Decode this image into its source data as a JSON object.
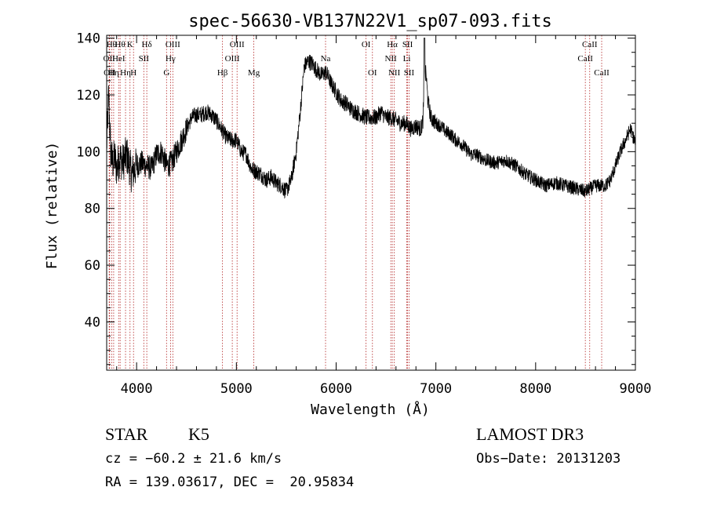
{
  "chart_data": {
    "type": "line",
    "title": "spec-56630-VB137N22V1_sp07-093.fits",
    "xlabel": "Wavelength (Å)",
    "ylabel": "Flux (relative)",
    "xlim": [
      3700,
      9000
    ],
    "ylim": [
      23,
      141
    ],
    "xticks": [
      4000,
      5000,
      6000,
      7000,
      8000,
      9000
    ],
    "yticks": [
      40,
      60,
      80,
      100,
      120,
      140
    ],
    "spectrum_anchors": {
      "x": [
        3700,
        3720,
        3740,
        3760,
        3780,
        3800,
        3830,
        3860,
        3900,
        3950,
        4000,
        4050,
        4100,
        4150,
        4200,
        4250,
        4300,
        4350,
        4400,
        4450,
        4500,
        4550,
        4600,
        4650,
        4700,
        4750,
        4800,
        4850,
        4900,
        4950,
        5000,
        5050,
        5100,
        5150,
        5200,
        5250,
        5300,
        5350,
        5400,
        5450,
        5500,
        5550,
        5600,
        5640,
        5680,
        5720,
        5760,
        5800,
        5850,
        5900,
        5950,
        6000,
        6050,
        6100,
        6150,
        6200,
        6250,
        6300,
        6350,
        6400,
        6450,
        6500,
        6550,
        6600,
        6650,
        6700,
        6750,
        6800,
        6850,
        6870,
        6885,
        6900,
        6920,
        6950,
        7000,
        7050,
        7100,
        7150,
        7200,
        7250,
        7300,
        7350,
        7400,
        7500,
        7600,
        7700,
        7800,
        7900,
        8000,
        8100,
        8200,
        8300,
        8400,
        8500,
        8600,
        8700,
        8750,
        8800,
        8850,
        8900,
        8950,
        9000
      ],
      "y": [
        102,
        120,
        100,
        96,
        98,
        94,
        98,
        96,
        99,
        92,
        95,
        96,
        95,
        94,
        99,
        100,
        95,
        96,
        100,
        104,
        108,
        112,
        113,
        113,
        114,
        113,
        111,
        108,
        105,
        104,
        104,
        100,
        99,
        94,
        93,
        92,
        90,
        91,
        89,
        88,
        86,
        90,
        100,
        114,
        130,
        132,
        131,
        129,
        127,
        128,
        124,
        121,
        118,
        117,
        115,
        114,
        113,
        112,
        112,
        112,
        114,
        112,
        112,
        111,
        110,
        110,
        108,
        109,
        108,
        111,
        124,
        128,
        118,
        112,
        110,
        109,
        107,
        106,
        104,
        103,
        101,
        99,
        99,
        97,
        96,
        97,
        95,
        92,
        90,
        88,
        89,
        88,
        87,
        86,
        88,
        88,
        90,
        95,
        100,
        104,
        108,
        103
      ]
    },
    "spike": {
      "x": 6885,
      "y": 140
    },
    "lines": [
      {
        "wl": 3725,
        "label": "OII",
        "row": 2
      },
      {
        "wl": 3730,
        "label": "OII",
        "row": 3
      },
      {
        "wl": 3750,
        "label": "Hθ",
        "row": 1
      },
      {
        "wl": 3770,
        "label": "Hη",
        "row": 3
      },
      {
        "wl": 3820,
        "label": "HeI",
        "row": 2
      },
      {
        "wl": 3835,
        "label": "Hθ",
        "row": 1
      },
      {
        "wl": 3889,
        "label": "Hη",
        "row": 3
      },
      {
        "wl": 3934,
        "label": "K",
        "row": 1
      },
      {
        "wl": 3969,
        "label": "H",
        "row": 3
      },
      {
        "wl": 4072,
        "label": "SII",
        "row": 2
      },
      {
        "wl": 4102,
        "label": "Hδ",
        "row": 1
      },
      {
        "wl": 4300,
        "label": "G",
        "row": 3
      },
      {
        "wl": 4340,
        "label": "Hγ",
        "row": 2
      },
      {
        "wl": 4363,
        "label": "OIII",
        "row": 1
      },
      {
        "wl": 4861,
        "label": "Hβ",
        "row": 3
      },
      {
        "wl": 4959,
        "label": "OIII",
        "row": 2
      },
      {
        "wl": 5007,
        "label": "OIII",
        "row": 1
      },
      {
        "wl": 5175,
        "label": "Mg",
        "row": 3
      },
      {
        "wl": 5894,
        "label": "Na",
        "row": 2
      },
      {
        "wl": 6300,
        "label": "OI",
        "row": 1
      },
      {
        "wl": 6364,
        "label": "OI",
        "row": 3
      },
      {
        "wl": 6548,
        "label": "NII",
        "row": 2
      },
      {
        "wl": 6563,
        "label": "Hα",
        "row": 1
      },
      {
        "wl": 6583,
        "label": "NII",
        "row": 3
      },
      {
        "wl": 6708,
        "label": "Li",
        "row": 2
      },
      {
        "wl": 6716,
        "label": "SII",
        "row": 1
      },
      {
        "wl": 6731,
        "label": "SII",
        "row": 3
      },
      {
        "wl": 8498,
        "label": "CaII",
        "row": 2
      },
      {
        "wl": 8542,
        "label": "CaII",
        "row": 1
      },
      {
        "wl": 8662,
        "label": "CaII",
        "row": 3
      }
    ]
  },
  "info": {
    "class": "STAR",
    "subclass": "K5",
    "survey": "LAMOST DR3",
    "cz": "cz = −60.2 ± 21.6 km/s",
    "obs_date": "Obs−Date: 20131203",
    "radec": "RA = 139.03617, DEC =  20.95834"
  },
  "colors": {
    "line_marker": "#b22222",
    "spectrum": "#000000"
  }
}
